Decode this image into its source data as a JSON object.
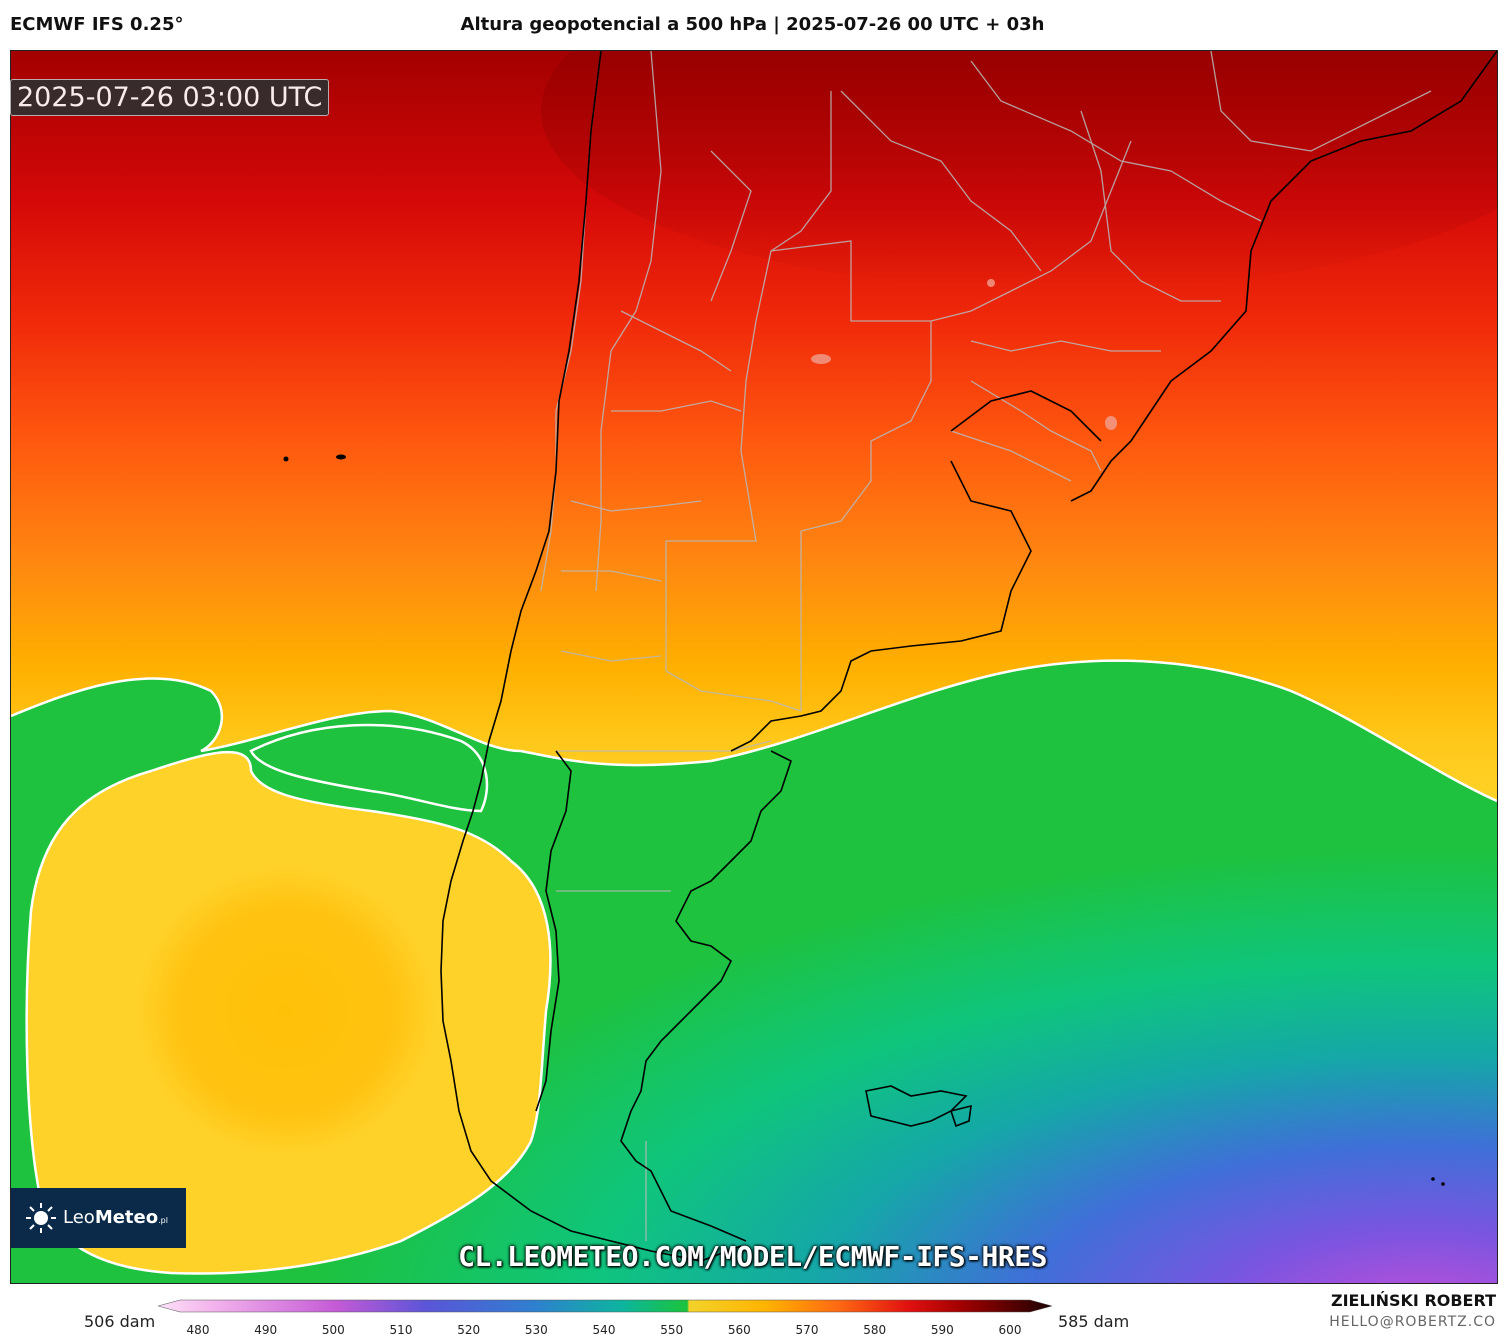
{
  "header": {
    "model": "ECMWF IFS 0.25°",
    "title": "Altura geopotencial a 500 hPa | 2025-07-26 00 UTC + 03h"
  },
  "map": {
    "valid_time": "2025-07-26 03:00 UTC",
    "watermark_url": "CL.LEOMETEO.COM/MODEL/ECMWF-IFS-HRES",
    "logo": {
      "leo": "Leo",
      "meteo": "Meteo",
      "suffix": ".pl"
    }
  },
  "colorbar": {
    "left_label": "506 dam",
    "right_label": "585 dam",
    "ticks": [
      "480",
      "490",
      "500",
      "510",
      "520",
      "530",
      "540",
      "550",
      "560",
      "570",
      "580",
      "590",
      "600"
    ],
    "colors": {
      "480": "#f7c6ef",
      "500": "#b54fd6",
      "520": "#3f62d8",
      "540": "#0fb98a",
      "550": "#22c23a",
      "552": "#f2d32a",
      "560": "#ffb300",
      "570": "#ff5a10",
      "580": "#d90e0e",
      "590": "#8a0000",
      "600": "#1c0000"
    }
  },
  "credits": {
    "author": "ZIELIŃSKI ROBERT",
    "email": "HELLO@ROBERTZ.CO"
  }
}
